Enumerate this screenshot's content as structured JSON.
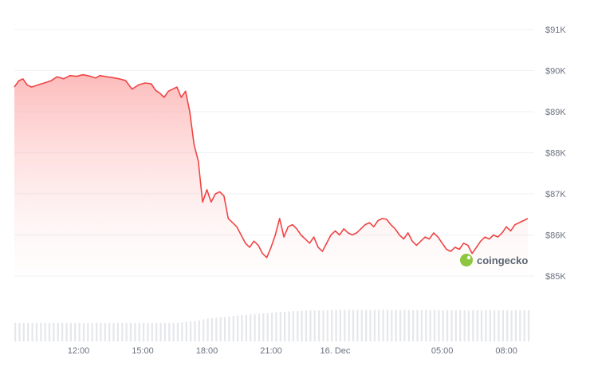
{
  "chart_data": {
    "type": "area",
    "title": "",
    "xlabel": "",
    "ylabel": "",
    "ylim": [
      84000,
      91600
    ],
    "y_ticks": [
      "$91K",
      "$90K",
      "$89K",
      "$88K",
      "$87K",
      "$86K",
      "$85K"
    ],
    "y_tick_values": [
      91000,
      90000,
      89000,
      88000,
      87000,
      86000,
      85000
    ],
    "x_ticks": [
      "12:00",
      "15:00",
      "18:00",
      "21:00",
      "16. Dec",
      "05:00",
      "08:00"
    ],
    "x_tick_hours": [
      12,
      15,
      18,
      21,
      24,
      29,
      32
    ],
    "xlim_hours": [
      9,
      33.3
    ],
    "grid": true,
    "colors": {
      "line": "#ef4444",
      "fill_top": "#fca5a5",
      "volume": "#e5e7eb",
      "logo": "#8dc63f"
    },
    "series": [
      {
        "values": [
          [
            9.0,
            89600
          ],
          [
            9.2,
            89750
          ],
          [
            9.4,
            89800
          ],
          [
            9.6,
            89650
          ],
          [
            9.8,
            89600
          ],
          [
            10.1,
            89650
          ],
          [
            10.4,
            89700
          ],
          [
            10.7,
            89750
          ],
          [
            11.0,
            89850
          ],
          [
            11.3,
            89800
          ],
          [
            11.6,
            89880
          ],
          [
            11.9,
            89860
          ],
          [
            12.2,
            89900
          ],
          [
            12.5,
            89870
          ],
          [
            12.8,
            89820
          ],
          [
            13.0,
            89880
          ],
          [
            13.3,
            89850
          ],
          [
            13.6,
            89830
          ],
          [
            13.9,
            89800
          ],
          [
            14.2,
            89760
          ],
          [
            14.5,
            89550
          ],
          [
            14.8,
            89650
          ],
          [
            15.1,
            89700
          ],
          [
            15.4,
            89680
          ],
          [
            15.6,
            89520
          ],
          [
            15.8,
            89450
          ],
          [
            16.0,
            89350
          ],
          [
            16.2,
            89500
          ],
          [
            16.4,
            89550
          ],
          [
            16.6,
            89600
          ],
          [
            16.8,
            89350
          ],
          [
            17.0,
            89500
          ],
          [
            17.2,
            89000
          ],
          [
            17.4,
            88200
          ],
          [
            17.6,
            87800
          ],
          [
            17.8,
            86800
          ],
          [
            18.0,
            87100
          ],
          [
            18.2,
            86800
          ],
          [
            18.4,
            87000
          ],
          [
            18.6,
            87050
          ],
          [
            18.8,
            86950
          ],
          [
            19.0,
            86400
          ],
          [
            19.2,
            86300
          ],
          [
            19.4,
            86200
          ],
          [
            19.6,
            86000
          ],
          [
            19.8,
            85800
          ],
          [
            20.0,
            85700
          ],
          [
            20.2,
            85850
          ],
          [
            20.4,
            85750
          ],
          [
            20.6,
            85550
          ],
          [
            20.8,
            85450
          ],
          [
            21.0,
            85700
          ],
          [
            21.2,
            86000
          ],
          [
            21.4,
            86400
          ],
          [
            21.6,
            85950
          ],
          [
            21.8,
            86200
          ],
          [
            22.0,
            86250
          ],
          [
            22.2,
            86150
          ],
          [
            22.4,
            86000
          ],
          [
            22.6,
            85900
          ],
          [
            22.8,
            85800
          ],
          [
            23.0,
            85950
          ],
          [
            23.2,
            85700
          ],
          [
            23.4,
            85600
          ],
          [
            23.6,
            85800
          ],
          [
            23.8,
            86000
          ],
          [
            24.0,
            86100
          ],
          [
            24.2,
            86000
          ],
          [
            24.4,
            86150
          ],
          [
            24.6,
            86050
          ],
          [
            24.8,
            86000
          ],
          [
            25.0,
            86050
          ],
          [
            25.2,
            86150
          ],
          [
            25.4,
            86250
          ],
          [
            25.6,
            86300
          ],
          [
            25.8,
            86200
          ],
          [
            26.0,
            86350
          ],
          [
            26.2,
            86400
          ],
          [
            26.4,
            86380
          ],
          [
            26.6,
            86250
          ],
          [
            26.8,
            86150
          ],
          [
            27.0,
            86000
          ],
          [
            27.2,
            85900
          ],
          [
            27.4,
            86050
          ],
          [
            27.6,
            85850
          ],
          [
            27.8,
            85750
          ],
          [
            28.0,
            85850
          ],
          [
            28.2,
            85950
          ],
          [
            28.4,
            85900
          ],
          [
            28.6,
            86050
          ],
          [
            28.8,
            85950
          ],
          [
            29.0,
            85800
          ],
          [
            29.2,
            85650
          ],
          [
            29.4,
            85600
          ],
          [
            29.6,
            85700
          ],
          [
            29.8,
            85650
          ],
          [
            30.0,
            85800
          ],
          [
            30.2,
            85750
          ],
          [
            30.4,
            85550
          ],
          [
            30.6,
            85700
          ],
          [
            30.8,
            85850
          ],
          [
            31.0,
            85950
          ],
          [
            31.2,
            85900
          ],
          [
            31.4,
            86000
          ],
          [
            31.6,
            85950
          ],
          [
            31.8,
            86050
          ],
          [
            32.0,
            86200
          ],
          [
            32.2,
            86100
          ],
          [
            32.4,
            86250
          ],
          [
            32.6,
            86300
          ],
          [
            32.8,
            86350
          ],
          [
            33.0,
            86400
          ]
        ]
      }
    ],
    "volume": [
      [
        9.0,
        0.55
      ],
      [
        12.0,
        0.55
      ],
      [
        15.0,
        0.55
      ],
      [
        16.5,
        0.55
      ],
      [
        17.5,
        0.62
      ],
      [
        18.0,
        0.68
      ],
      [
        19.5,
        0.78
      ],
      [
        21.0,
        0.86
      ],
      [
        22.5,
        0.92
      ],
      [
        24.0,
        0.94
      ],
      [
        27.0,
        0.94
      ],
      [
        30.0,
        0.93
      ],
      [
        33.0,
        0.93
      ]
    ],
    "logo_text": "coingecko"
  }
}
